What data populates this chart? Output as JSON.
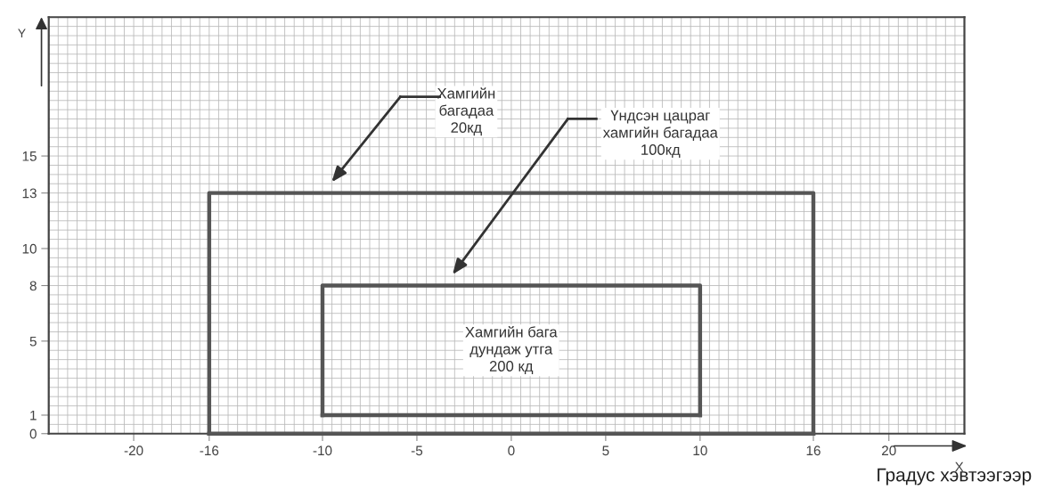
{
  "chart_data": {
    "type": "line",
    "xlabel": "Градус хэвтээгээр",
    "ylabel": "Y",
    "xlim": [
      -24.5,
      24
    ],
    "ylim": [
      0,
      22.5
    ],
    "xticks": [
      -20,
      -16,
      -10,
      -5,
      0,
      5,
      10,
      16,
      20
    ],
    "yticks": [
      0,
      1,
      5,
      8,
      10,
      13,
      15
    ],
    "grid": true,
    "marker": "none",
    "line_style": "solid",
    "series": [
      {
        "color": "#555555",
        "x": [
          -16,
          -16,
          16,
          16
        ],
        "values": [
          0,
          13,
          13,
          0
        ]
      },
      {
        "color": "#555555",
        "x": [
          -16,
          16
        ],
        "values": [
          0,
          0
        ]
      },
      {
        "color": "#555555",
        "x": [
          -10,
          -10,
          10,
          10
        ],
        "values": [
          1,
          8,
          8,
          1
        ]
      },
      {
        "color": "#555555",
        "x": [
          -10,
          10
        ],
        "values": [
          1,
          1
        ]
      }
    ],
    "annotations": [
      "Хамгийн\nбагадаа\n20кд",
      "Үндсэн цацраг\nхамгийн багадаа\n100кд",
      "Хамгийн бага\nдундаж утга\n200 кд",
      "X"
    ]
  }
}
